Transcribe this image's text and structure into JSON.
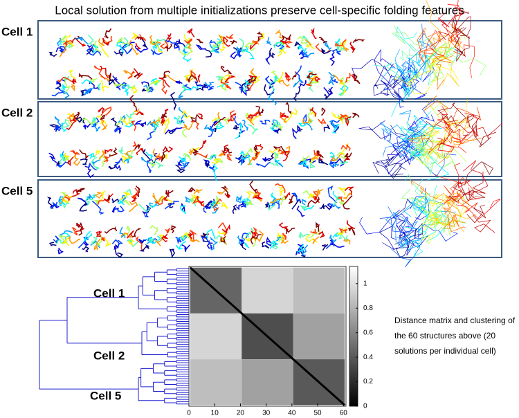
{
  "title": "Local solution from multiple initializations preserve cell-specific folding features",
  "panels": [
    {
      "label": "Cell 1"
    },
    {
      "label": "Cell 2"
    },
    {
      "label": "Cell 5"
    }
  ],
  "chart_data": {
    "type": "heatmap",
    "dendrogram_labels": [
      "Cell 1",
      "Cell 2",
      "Cell 5"
    ],
    "caption": [
      "Distance matrix and clustering of",
      "the 60 structures above (20",
      "solutions per individual cell)"
    ],
    "edges": [
      0.5,
      20.5,
      40.5,
      60.5
    ],
    "values": [
      [
        0.45,
        0.95,
        0.85
      ],
      [
        0.95,
        0.35,
        0.72
      ],
      [
        0.85,
        0.72,
        0.4
      ]
    ],
    "diagonal_value": 0,
    "xlim": [
      0,
      61
    ],
    "ylim": [
      0,
      61
    ],
    "xticks": [
      0,
      10,
      20,
      30,
      40,
      50,
      60
    ],
    "clim": [
      0,
      1.14
    ],
    "cticks": [
      0,
      0.2,
      0.4,
      0.6,
      0.8,
      1
    ]
  }
}
